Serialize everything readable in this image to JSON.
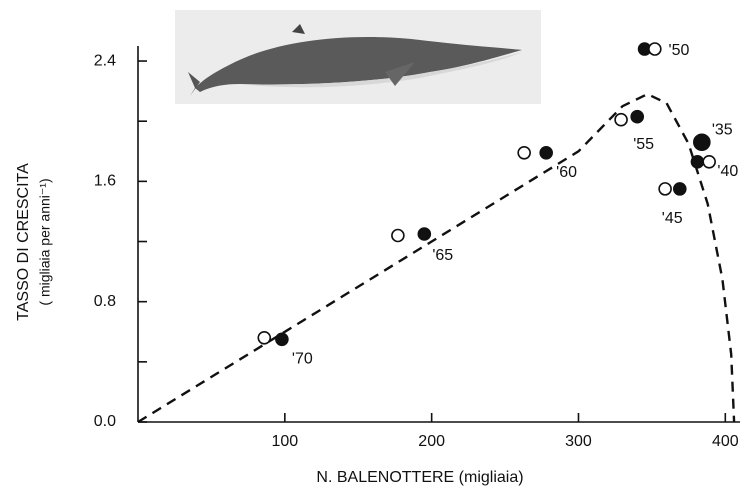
{
  "chart_data": {
    "type": "scatter",
    "xlabel": "N. BALENOTTERE (migliaia)",
    "ylabel": [
      "TASSO DI CRESCITA",
      "( migliaia per anni⁻¹)"
    ],
    "xlim": [
      0,
      410
    ],
    "ylim": [
      0,
      2.5
    ],
    "xticks": [
      100,
      200,
      300,
      400
    ],
    "yticks": [
      {
        "value": 0,
        "label": "0.0"
      },
      0.8,
      1.6,
      2.4
    ],
    "yminorticks": [
      0.4,
      1.2,
      2.0
    ],
    "series": [
      {
        "color": "#111111",
        "marker": "filled",
        "x": [
          98,
          195,
          278,
          340,
          345,
          384,
          381,
          369
        ],
        "values": [
          0.55,
          1.25,
          1.79,
          2.03,
          2.48,
          1.86,
          1.73,
          1.55
        ],
        "point_labels": [
          "'70",
          "'65",
          "'60",
          "'55",
          "'50",
          "'35",
          "'40",
          "'45"
        ]
      },
      {
        "color": "#111111",
        "marker": "open",
        "x": [
          86,
          177,
          263,
          329,
          352,
          389,
          359
        ],
        "values": [
          0.56,
          1.24,
          1.79,
          2.01,
          2.48,
          1.73,
          1.55
        ]
      }
    ],
    "curve": {
      "color": "#111111",
      "style": "dashed",
      "x": [
        0,
        100,
        200,
        300,
        330,
        347,
        360,
        375,
        388,
        398,
        404,
        406
      ],
      "values": [
        0,
        0.6,
        1.2,
        1.8,
        2.1,
        2.18,
        2.12,
        1.85,
        1.45,
        0.95,
        0.45,
        0
      ]
    }
  }
}
